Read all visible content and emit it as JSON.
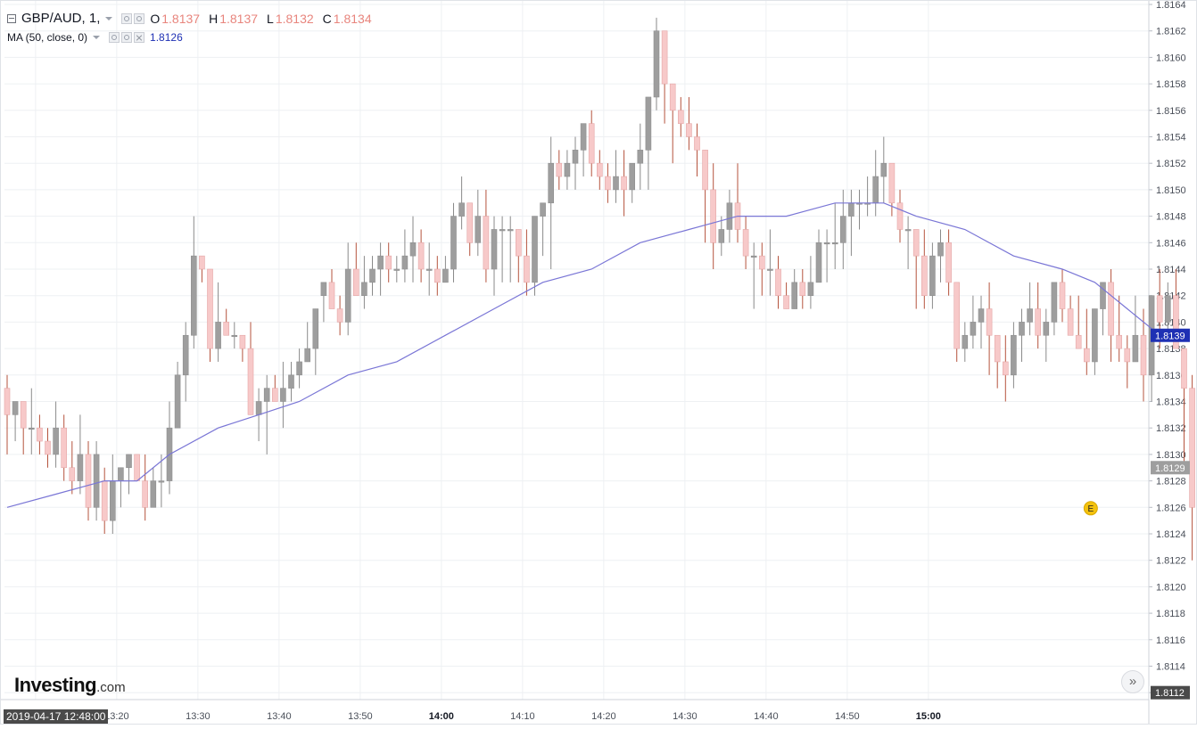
{
  "legend": {
    "symbol": "GBP/AUD, 1,",
    "o_label": "O",
    "o_value": "1.8137",
    "h_label": "H",
    "h_value": "1.8137",
    "l_label": "L",
    "l_value": "1.8132",
    "c_label": "C",
    "c_value": "1.8134",
    "ma_label": "MA (50, close, 0)",
    "ma_value": "1.8126"
  },
  "logo": {
    "main": "Investing",
    "suffix": ".com"
  },
  "crosshair_date": "2019-04-17 12:48:00",
  "event_marker": "E",
  "colors": {
    "up": "#9e9e9e",
    "down": "#f7c9c9",
    "down_wick": "#b5533d",
    "ma_line": "#7a76d6",
    "ma_badge": "#1e30b4",
    "price_badge": "#9e9e9e",
    "grid": "#eef0f3"
  },
  "icons": [
    "hide-legend-icon",
    "eye-icon",
    "settings-icon",
    "close-icon",
    "fast-forward-icon"
  ],
  "chart_data": {
    "type": "candlestick",
    "interval": "1 minute",
    "x_ticks": [
      "13:00",
      "13:10",
      "13:20",
      "13:30",
      "13:40",
      "13:50",
      "14:00",
      "14:10",
      "14:20",
      "14:30",
      "14:40",
      "14:50",
      "15:00"
    ],
    "y_ticks": [
      "1.8112",
      "1.8114",
      "1.8116",
      "1.8118",
      "1.8120",
      "1.8122",
      "1.8124",
      "1.8126",
      "1.8128",
      "1.8130",
      "1.8132",
      "1.8134",
      "1.8136",
      "1.8138",
      "1.8140",
      "1.8142",
      "1.8144",
      "1.8146",
      "1.8148",
      "1.8150",
      "1.8152",
      "1.8154",
      "1.8156",
      "1.8158",
      "1.8160",
      "1.8162",
      "1.8164"
    ],
    "ylim": [
      1.8112,
      1.8164
    ],
    "candles_ohlc": [
      [
        1.8135,
        1.8136,
        1.813,
        1.8133
      ],
      [
        1.8133,
        1.8134,
        1.8131,
        1.8134
      ],
      [
        1.8134,
        1.8134,
        1.813,
        1.8132
      ],
      [
        1.8132,
        1.8135,
        1.813,
        1.8132
      ],
      [
        1.8132,
        1.8133,
        1.813,
        1.8131
      ],
      [
        1.8131,
        1.8132,
        1.8129,
        1.813
      ],
      [
        1.813,
        1.8134,
        1.8129,
        1.8132
      ],
      [
        1.8132,
        1.8133,
        1.8128,
        1.8129
      ],
      [
        1.8129,
        1.8131,
        1.8127,
        1.8128
      ],
      [
        1.8128,
        1.8133,
        1.8127,
        1.813
      ],
      [
        1.813,
        1.8131,
        1.8125,
        1.8126
      ],
      [
        1.8126,
        1.8131,
        1.8125,
        1.813
      ],
      [
        1.8128,
        1.8129,
        1.8124,
        1.8125
      ],
      [
        1.8125,
        1.813,
        1.8124,
        1.8128
      ],
      [
        1.8128,
        1.8129,
        1.8126,
        1.8129
      ],
      [
        1.8129,
        1.813,
        1.8127,
        1.813
      ],
      [
        1.813,
        1.813,
        1.8128,
        1.8128
      ],
      [
        1.8128,
        1.813,
        1.8125,
        1.8126
      ],
      [
        1.8126,
        1.8129,
        1.8126,
        1.8128
      ],
      [
        1.8128,
        1.813,
        1.8126,
        1.8128
      ],
      [
        1.8128,
        1.8134,
        1.8127,
        1.8132
      ],
      [
        1.8132,
        1.8137,
        1.8132,
        1.8136
      ],
      [
        1.8136,
        1.814,
        1.8134,
        1.8139
      ],
      [
        1.8139,
        1.8148,
        1.8138,
        1.8145
      ],
      [
        1.8145,
        1.8144,
        1.8143,
        1.8144
      ],
      [
        1.8144,
        1.8143,
        1.8137,
        1.8138
      ],
      [
        1.8138,
        1.8143,
        1.8137,
        1.814
      ],
      [
        1.814,
        1.8141,
        1.8139,
        1.8139
      ],
      [
        1.8139,
        1.814,
        1.8138,
        1.8139
      ],
      [
        1.8139,
        1.8139,
        1.8137,
        1.8138
      ],
      [
        1.8138,
        1.814,
        1.8133,
        1.8133
      ],
      [
        1.8133,
        1.8135,
        1.8131,
        1.8134
      ],
      [
        1.8134,
        1.8136,
        1.813,
        1.8135
      ],
      [
        1.8135,
        1.8136,
        1.8134,
        1.8134
      ],
      [
        1.8134,
        1.8137,
        1.8132,
        1.8135
      ],
      [
        1.8135,
        1.8137,
        1.8134,
        1.8136
      ],
      [
        1.8136,
        1.8138,
        1.8135,
        1.8137
      ],
      [
        1.8137,
        1.814,
        1.8137,
        1.8138
      ],
      [
        1.8138,
        1.8141,
        1.8136,
        1.8141
      ],
      [
        1.8142,
        1.8143,
        1.814,
        1.8143
      ],
      [
        1.8143,
        1.8144,
        1.8141,
        1.8141
      ],
      [
        1.8141,
        1.8142,
        1.8139,
        1.814
      ],
      [
        1.814,
        1.8146,
        1.8139,
        1.8144
      ],
      [
        1.8144,
        1.8146,
        1.8142,
        1.8142
      ],
      [
        1.8142,
        1.8145,
        1.8141,
        1.8143
      ],
      [
        1.8143,
        1.8145,
        1.8142,
        1.8144
      ],
      [
        1.8144,
        1.8146,
        1.8142,
        1.8145
      ],
      [
        1.8145,
        1.8146,
        1.8143,
        1.8144
      ],
      [
        1.8144,
        1.8145,
        1.8143,
        1.8144
      ],
      [
        1.8144,
        1.8147,
        1.8143,
        1.8145
      ],
      [
        1.8145,
        1.8148,
        1.8143,
        1.8146
      ],
      [
        1.8146,
        1.8147,
        1.8143,
        1.8144
      ],
      [
        1.8144,
        1.8146,
        1.8142,
        1.8144
      ],
      [
        1.8144,
        1.8145,
        1.8142,
        1.8143
      ],
      [
        1.8143,
        1.8145,
        1.8143,
        1.8144
      ],
      [
        1.8144,
        1.8149,
        1.8143,
        1.8148
      ],
      [
        1.8148,
        1.8151,
        1.8147,
        1.8149
      ],
      [
        1.8149,
        1.8149,
        1.8145,
        1.8146
      ],
      [
        1.8146,
        1.815,
        1.8145,
        1.8148
      ],
      [
        1.8148,
        1.815,
        1.8143,
        1.8144
      ],
      [
        1.8144,
        1.8148,
        1.8142,
        1.8147
      ],
      [
        1.8147,
        1.8148,
        1.8143,
        1.8147
      ],
      [
        1.8147,
        1.8148,
        1.8143,
        1.8147
      ],
      [
        1.8147,
        1.8147,
        1.8143,
        1.8145
      ],
      [
        1.8145,
        1.8147,
        1.8142,
        1.8143
      ],
      [
        1.8143,
        1.8148,
        1.8142,
        1.8148
      ],
      [
        1.8148,
        1.8149,
        1.8145,
        1.8149
      ],
      [
        1.8149,
        1.8154,
        1.8144,
        1.8152
      ],
      [
        1.8152,
        1.8153,
        1.815,
        1.8151
      ],
      [
        1.8151,
        1.8153,
        1.815,
        1.8152
      ],
      [
        1.8152,
        1.8154,
        1.815,
        1.8153
      ],
      [
        1.8153,
        1.8155,
        1.8151,
        1.8155
      ],
      [
        1.8155,
        1.8156,
        1.8151,
        1.8152
      ],
      [
        1.8152,
        1.8153,
        1.815,
        1.8151
      ],
      [
        1.8151,
        1.8152,
        1.8149,
        1.815
      ],
      [
        1.815,
        1.8153,
        1.8149,
        1.8151
      ],
      [
        1.8151,
        1.8153,
        1.8148,
        1.815
      ],
      [
        1.815,
        1.8152,
        1.8149,
        1.8152
      ],
      [
        1.8152,
        1.8155,
        1.815,
        1.8153
      ],
      [
        1.8153,
        1.8157,
        1.815,
        1.8157
      ],
      [
        1.8157,
        1.8163,
        1.8156,
        1.8162
      ],
      [
        1.8162,
        1.816,
        1.8155,
        1.8158
      ],
      [
        1.8158,
        1.8158,
        1.8152,
        1.8156
      ],
      [
        1.8156,
        1.8157,
        1.8154,
        1.8155
      ],
      [
        1.8155,
        1.8157,
        1.8153,
        1.8154
      ],
      [
        1.8154,
        1.8155,
        1.8151,
        1.8153
      ],
      [
        1.8153,
        1.8153,
        1.8146,
        1.815
      ],
      [
        1.815,
        1.8152,
        1.8144,
        1.8146
      ],
      [
        1.8146,
        1.8148,
        1.8145,
        1.8147
      ],
      [
        1.8147,
        1.815,
        1.8146,
        1.8149
      ],
      [
        1.8149,
        1.8152,
        1.8146,
        1.8147
      ],
      [
        1.8147,
        1.8148,
        1.8144,
        1.8145
      ],
      [
        1.8145,
        1.8146,
        1.8141,
        1.8145
      ],
      [
        1.8145,
        1.8146,
        1.8142,
        1.8144
      ],
      [
        1.8144,
        1.8147,
        1.8142,
        1.8144
      ],
      [
        1.8144,
        1.8145,
        1.8141,
        1.8142
      ],
      [
        1.8142,
        1.8143,
        1.8141,
        1.8141
      ],
      [
        1.8141,
        1.8144,
        1.8141,
        1.8143
      ],
      [
        1.8143,
        1.8144,
        1.8141,
        1.8142
      ],
      [
        1.8142,
        1.8145,
        1.8141,
        1.8143
      ],
      [
        1.8143,
        1.8147,
        1.8143,
        1.8146
      ],
      [
        1.8146,
        1.8147,
        1.8143,
        1.8146
      ],
      [
        1.8146,
        1.8149,
        1.8144,
        1.8146
      ],
      [
        1.8146,
        1.815,
        1.8144,
        1.8148
      ],
      [
        1.8148,
        1.815,
        1.8145,
        1.8149
      ],
      [
        1.8149,
        1.815,
        1.8147,
        1.8149
      ],
      [
        1.8149,
        1.8151,
        1.8148,
        1.8149
      ],
      [
        1.8149,
        1.8153,
        1.8148,
        1.8151
      ],
      [
        1.8151,
        1.8154,
        1.8149,
        1.8152
      ],
      [
        1.8152,
        1.8152,
        1.8148,
        1.8149
      ],
      [
        1.8149,
        1.815,
        1.8146,
        1.8147
      ],
      [
        1.8147,
        1.8148,
        1.8144,
        1.8147
      ],
      [
        1.8147,
        1.8147,
        1.8141,
        1.8145
      ],
      [
        1.8145,
        1.8147,
        1.8141,
        1.8142
      ],
      [
        1.8142,
        1.8146,
        1.8141,
        1.8145
      ],
      [
        1.8145,
        1.8147,
        1.8143,
        1.8146
      ],
      [
        1.8146,
        1.8147,
        1.8142,
        1.8143
      ],
      [
        1.8143,
        1.8143,
        1.8137,
        1.8138
      ],
      [
        1.8138,
        1.814,
        1.8137,
        1.8139
      ],
      [
        1.8139,
        1.8142,
        1.8138,
        1.814
      ],
      [
        1.814,
        1.8142,
        1.8138,
        1.8141
      ],
      [
        1.8141,
        1.8143,
        1.8136,
        1.8139
      ],
      [
        1.8139,
        1.8139,
        1.8135,
        1.8137
      ],
      [
        1.8137,
        1.8139,
        1.8134,
        1.8136
      ],
      [
        1.8136,
        1.814,
        1.8135,
        1.8139
      ],
      [
        1.8139,
        1.8141,
        1.8137,
        1.814
      ],
      [
        1.814,
        1.8143,
        1.8139,
        1.8141
      ],
      [
        1.8141,
        1.8143,
        1.8138,
        1.8139
      ],
      [
        1.8139,
        1.8141,
        1.8137,
        1.814
      ],
      [
        1.814,
        1.8143,
        1.8139,
        1.8143
      ],
      [
        1.8143,
        1.8144,
        1.814,
        1.8141
      ],
      [
        1.8141,
        1.8142,
        1.8139,
        1.8139
      ],
      [
        1.8139,
        1.8142,
        1.8138,
        1.8138
      ],
      [
        1.8138,
        1.8141,
        1.8136,
        1.8137
      ],
      [
        1.8137,
        1.8141,
        1.8136,
        1.8141
      ],
      [
        1.8141,
        1.8143,
        1.8139,
        1.8143
      ],
      [
        1.8143,
        1.8144,
        1.8137,
        1.8139
      ],
      [
        1.8139,
        1.8142,
        1.8137,
        1.8138
      ],
      [
        1.8138,
        1.8139,
        1.8135,
        1.8137
      ],
      [
        1.8137,
        1.8142,
        1.8137,
        1.8139
      ],
      [
        1.8139,
        1.8141,
        1.8134,
        1.8136
      ],
      [
        1.8136,
        1.8142,
        1.8134,
        1.8142
      ],
      [
        1.8142,
        1.8144,
        1.8138,
        1.814
      ],
      [
        1.814,
        1.8143,
        1.8139,
        1.8142
      ],
      [
        1.8142,
        1.8144,
        1.8138,
        1.8138
      ],
      [
        1.8138,
        1.8137,
        1.8129,
        1.8135
      ],
      [
        1.8135,
        1.8136,
        1.8122,
        1.8126
      ],
      [
        1.8126,
        1.8129,
        1.8119,
        1.8121
      ],
      [
        1.8121,
        1.8125,
        1.8119,
        1.8122
      ],
      [
        1.8122,
        1.8123,
        1.8117,
        1.8119
      ],
      [
        1.8119,
        1.812,
        1.8113,
        1.8116
      ],
      [
        1.8116,
        1.812,
        1.8115,
        1.8118
      ],
      [
        1.8118,
        1.812,
        1.8114,
        1.8116
      ],
      [
        1.8116,
        1.8118,
        1.8115,
        1.8119
      ],
      [
        1.8119,
        1.8123,
        1.8119,
        1.8122
      ],
      [
        1.8122,
        1.8124,
        1.812,
        1.8123
      ],
      [
        1.8123,
        1.8129,
        1.8122,
        1.8129
      ]
    ],
    "ma_label": "MA (50, close, 0)",
    "ma_value": 1.8126,
    "ma_points": [
      [
        0,
        1.8126
      ],
      [
        6,
        1.8127
      ],
      [
        12,
        1.8128
      ],
      [
        16,
        1.8128
      ],
      [
        20,
        1.813
      ],
      [
        26,
        1.8132
      ],
      [
        31,
        1.8133
      ],
      [
        36,
        1.8134
      ],
      [
        42,
        1.8136
      ],
      [
        48,
        1.8137
      ],
      [
        54,
        1.8139
      ],
      [
        60,
        1.8141
      ],
      [
        66,
        1.8143
      ],
      [
        72,
        1.8144
      ],
      [
        78,
        1.8146
      ],
      [
        84,
        1.8147
      ],
      [
        90,
        1.8148
      ],
      [
        96,
        1.8148
      ],
      [
        102,
        1.8149
      ],
      [
        108,
        1.8149
      ],
      [
        112,
        1.8148
      ],
      [
        118,
        1.8147
      ],
      [
        124,
        1.8145
      ],
      [
        130,
        1.8144
      ],
      [
        134,
        1.8143
      ],
      [
        138,
        1.8141
      ],
      [
        142,
        1.8139
      ]
    ],
    "last_price": 1.8129,
    "ma_last": 1.8139,
    "axis_labels": {
      "ma_badge": "1.8139",
      "price_badge": "1.8129",
      "bottom": "1.8112"
    }
  }
}
